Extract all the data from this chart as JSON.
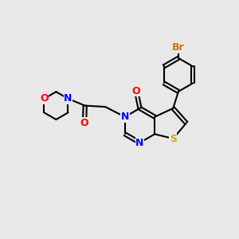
{
  "background_color": "#e8e8e8",
  "atom_colors": {
    "C": "#000000",
    "N": "#0000ff",
    "O": "#ff0000",
    "S": "#ccaa00",
    "Br": "#cc7700"
  },
  "bond_color": "#000000",
  "bond_width": 1.5,
  "font_size": 9,
  "fig_size": [
    3.0,
    3.0
  ],
  "dpi": 100
}
